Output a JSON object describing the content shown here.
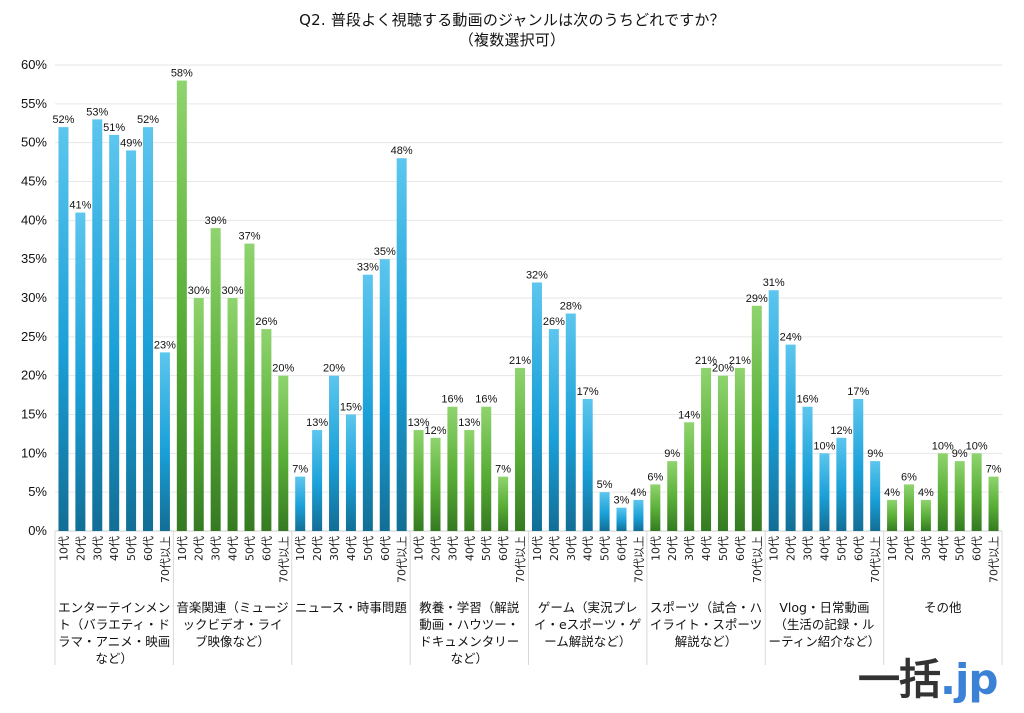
{
  "header": {
    "title_line1": "Q2. 普段よく視聴する動画のジャンルは次のうちどれですか？",
    "title_line2": "（複数選択可）"
  },
  "logo": {
    "kanji": "一括",
    "suffix": ".jp",
    "suffix_color": "#3b82d6"
  },
  "colors": {
    "blue": "#1ea3dc",
    "green": "#5aae3a"
  },
  "chart_data": {
    "type": "bar",
    "title": "Q2. 普段よく視聴する動画のジャンルは次のうちどれですか？（複数選択可）",
    "xlabel": "",
    "ylabel": "",
    "ylim": [
      0,
      60
    ],
    "yticks": [
      "0%",
      "5%",
      "10%",
      "15%",
      "20%",
      "25%",
      "30%",
      "35%",
      "40%",
      "45%",
      "50%",
      "55%",
      "60%"
    ],
    "grid": true,
    "legend": "none",
    "age_groups": [
      "10代",
      "20代",
      "30代",
      "40代",
      "50代",
      "60代",
      "70代以上"
    ],
    "groups": [
      {
        "category": "エンターテインメント（バラエティ・ドラマ・アニメ・映画など）",
        "color": "blue",
        "values": [
          52,
          41,
          53,
          51,
          49,
          52,
          23
        ]
      },
      {
        "category": "音楽関連（ミュージックビデオ・ライブ映像など）",
        "color": "green",
        "values": [
          58,
          30,
          39,
          30,
          37,
          26,
          20
        ]
      },
      {
        "category": "ニュース・時事問題",
        "color": "blue",
        "values": [
          7,
          13,
          20,
          15,
          33,
          35,
          48
        ]
      },
      {
        "category": "教養・学習（解説動画・ハウツー・ドキュメンタリーなど）",
        "color": "green",
        "values": [
          13,
          12,
          16,
          13,
          16,
          7,
          21
        ]
      },
      {
        "category": "ゲーム（実況プレイ・eスポーツ・ゲーム解説など）",
        "color": "blue",
        "values": [
          32,
          26,
          28,
          17,
          5,
          3,
          4
        ]
      },
      {
        "category": "スポーツ（試合・ハイライト・スポーツ解説など）",
        "color": "green",
        "values": [
          6,
          9,
          14,
          21,
          20,
          21,
          29
        ]
      },
      {
        "category": "Vlog・日常動画（生活の記録・ルーティン紹介など）",
        "color": "blue",
        "values": [
          31,
          24,
          16,
          10,
          12,
          17,
          9
        ]
      },
      {
        "category": "その他",
        "color": "green",
        "values": [
          4,
          6,
          4,
          10,
          9,
          10,
          7
        ]
      }
    ],
    "value_suffix": "%"
  }
}
